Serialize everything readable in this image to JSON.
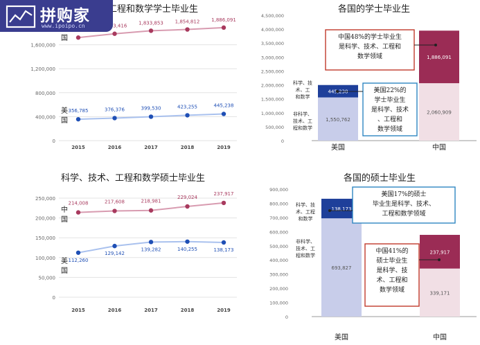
{
  "logo": {
    "text": "拼购家",
    "url": "www.ipoipo.cn"
  },
  "chart_data": [
    {
      "type": "line",
      "title": "科学、技术、工程和数学学士毕业生",
      "categories": [
        "2015",
        "2016",
        "2017",
        "2018",
        "2019"
      ],
      "ylim": [
        0,
        2000000
      ],
      "yticks": [
        0,
        400000,
        800000,
        1200000,
        1600000
      ],
      "ytick_labels": [
        "0",
        "400,000",
        "800,000",
        "1,200,000",
        "1,600,000"
      ],
      "grid": true,
      "series": [
        {
          "name": "中国",
          "color": "#a83a5e",
          "values": [
            1720000,
            1783416,
            1833853,
            1854812,
            1886091
          ],
          "labels": [
            "",
            "1,783,416",
            "1,833,853",
            "1,854,812",
            "1,886,091"
          ]
        },
        {
          "name": "美国",
          "color": "#1f4fb5",
          "values": [
            356785,
            376376,
            399530,
            423255,
            445238
          ],
          "labels": [
            "356,785",
            "376,376",
            "399,530",
            "423,255",
            "445,238"
          ]
        }
      ]
    },
    {
      "type": "bar",
      "stacked": true,
      "title": "各国的学士毕业生",
      "categories": [
        "美国",
        "中国"
      ],
      "ylim": [
        0,
        4500000
      ],
      "yticks": [
        0,
        500000,
        1000000,
        1500000,
        2000000,
        2500000,
        3000000,
        3500000,
        4000000,
        4500000
      ],
      "ytick_labels": [
        "0",
        "500,000",
        "1,000,000",
        "1,500,000",
        "2,000,000",
        "2,500,000",
        "3,000,000",
        "3,500,000",
        "4,000,000",
        "4,500,000"
      ],
      "series": [
        {
          "name": "非科学、技术、工程和数学",
          "values": [
            1550762,
            2060909
          ],
          "labels": [
            "1,550,762",
            "2,060,909"
          ]
        },
        {
          "name": "科学、技术、工程和数学",
          "values": [
            445238,
            1886091
          ],
          "labels": [
            "445,238",
            "1,886,091"
          ]
        }
      ],
      "colors": {
        "us_non": "#c8cdea",
        "us_stem": "#1e3f9a",
        "cn_non": "#f1dfe5",
        "cn_stem": "#9b2c55"
      },
      "legend_labels": {
        "stem": [
          "科学、技",
          "术、工",
          "和数学"
        ],
        "non": [
          "非科学、",
          "技术、工",
          "程和数学"
        ]
      },
      "annotations": [
        {
          "lines": [
            "中国48%的学士毕业生",
            "是科学、技术、工程和",
            "数学领域"
          ],
          "border": "#c0392b"
        },
        {
          "lines": [
            "美国22%的",
            "学士毕业生",
            "是科学、技术",
            "、工程和",
            "数学领域"
          ],
          "border": "#2e86c1"
        }
      ]
    },
    {
      "type": "line",
      "title": "科学、技术、工程和数学硕士毕业生",
      "categories": [
        "2015",
        "2016",
        "2017",
        "2018",
        "2019"
      ],
      "ylim": [
        0,
        250000
      ],
      "yticks": [
        0,
        50000,
        100000,
        150000,
        200000,
        250000
      ],
      "ytick_labels": [
        "0",
        "50,000",
        "100,000",
        "150,000",
        "200,000",
        "250,000"
      ],
      "grid": true,
      "series": [
        {
          "name": "中国",
          "color": "#a83a5e",
          "values": [
            214008,
            217608,
            218981,
            229024,
            237917
          ],
          "labels": [
            "214,008",
            "217,608",
            "218,981",
            "229,024",
            "237,917"
          ]
        },
        {
          "name": "美国",
          "color": "#1f4fb5",
          "values": [
            112260,
            129142,
            139282,
            140255,
            138173
          ],
          "labels": [
            "112,260",
            "129,142",
            "139,282",
            "140,255",
            "138,173"
          ]
        }
      ]
    },
    {
      "type": "bar",
      "stacked": true,
      "title": "各国的硕士毕业生",
      "categories": [
        "美国",
        "中国"
      ],
      "ylim": [
        0,
        900000
      ],
      "yticks": [
        0,
        100000,
        200000,
        300000,
        400000,
        500000,
        600000,
        700000,
        800000,
        900000
      ],
      "ytick_labels": [
        "0",
        "100,000",
        "200,000",
        "300,000",
        "400,000",
        "500,000",
        "600,000",
        "700,000",
        "800,000",
        "900,000"
      ],
      "series": [
        {
          "name": "非科学、技术、工程和数学",
          "values": [
            693827,
            339171
          ],
          "labels": [
            "693,827",
            "339,171"
          ]
        },
        {
          "name": "科学、技术、工程和数学",
          "values": [
            138173,
            237917
          ],
          "labels": [
            "138,173",
            "237,917"
          ]
        }
      ],
      "colors": {
        "us_non": "#c8cdea",
        "us_stem": "#1e3f9a",
        "cn_non": "#f1dfe5",
        "cn_stem": "#9b2c55"
      },
      "legend_labels": {
        "stem": [
          "科学、技",
          "术、工程",
          "和数学"
        ],
        "non": [
          "非科学、",
          "技术、工",
          "程和数学"
        ]
      },
      "annotations": [
        {
          "lines": [
            "美国17%的硕士",
            "毕业生是科学、技术、",
            "工程和数学领域"
          ],
          "border": "#2e86c1"
        },
        {
          "lines": [
            "中国41%的",
            "硕士毕业生",
            "是科学、技",
            "术、工程和",
            "数学领域"
          ],
          "border": "#c0392b"
        }
      ]
    }
  ]
}
